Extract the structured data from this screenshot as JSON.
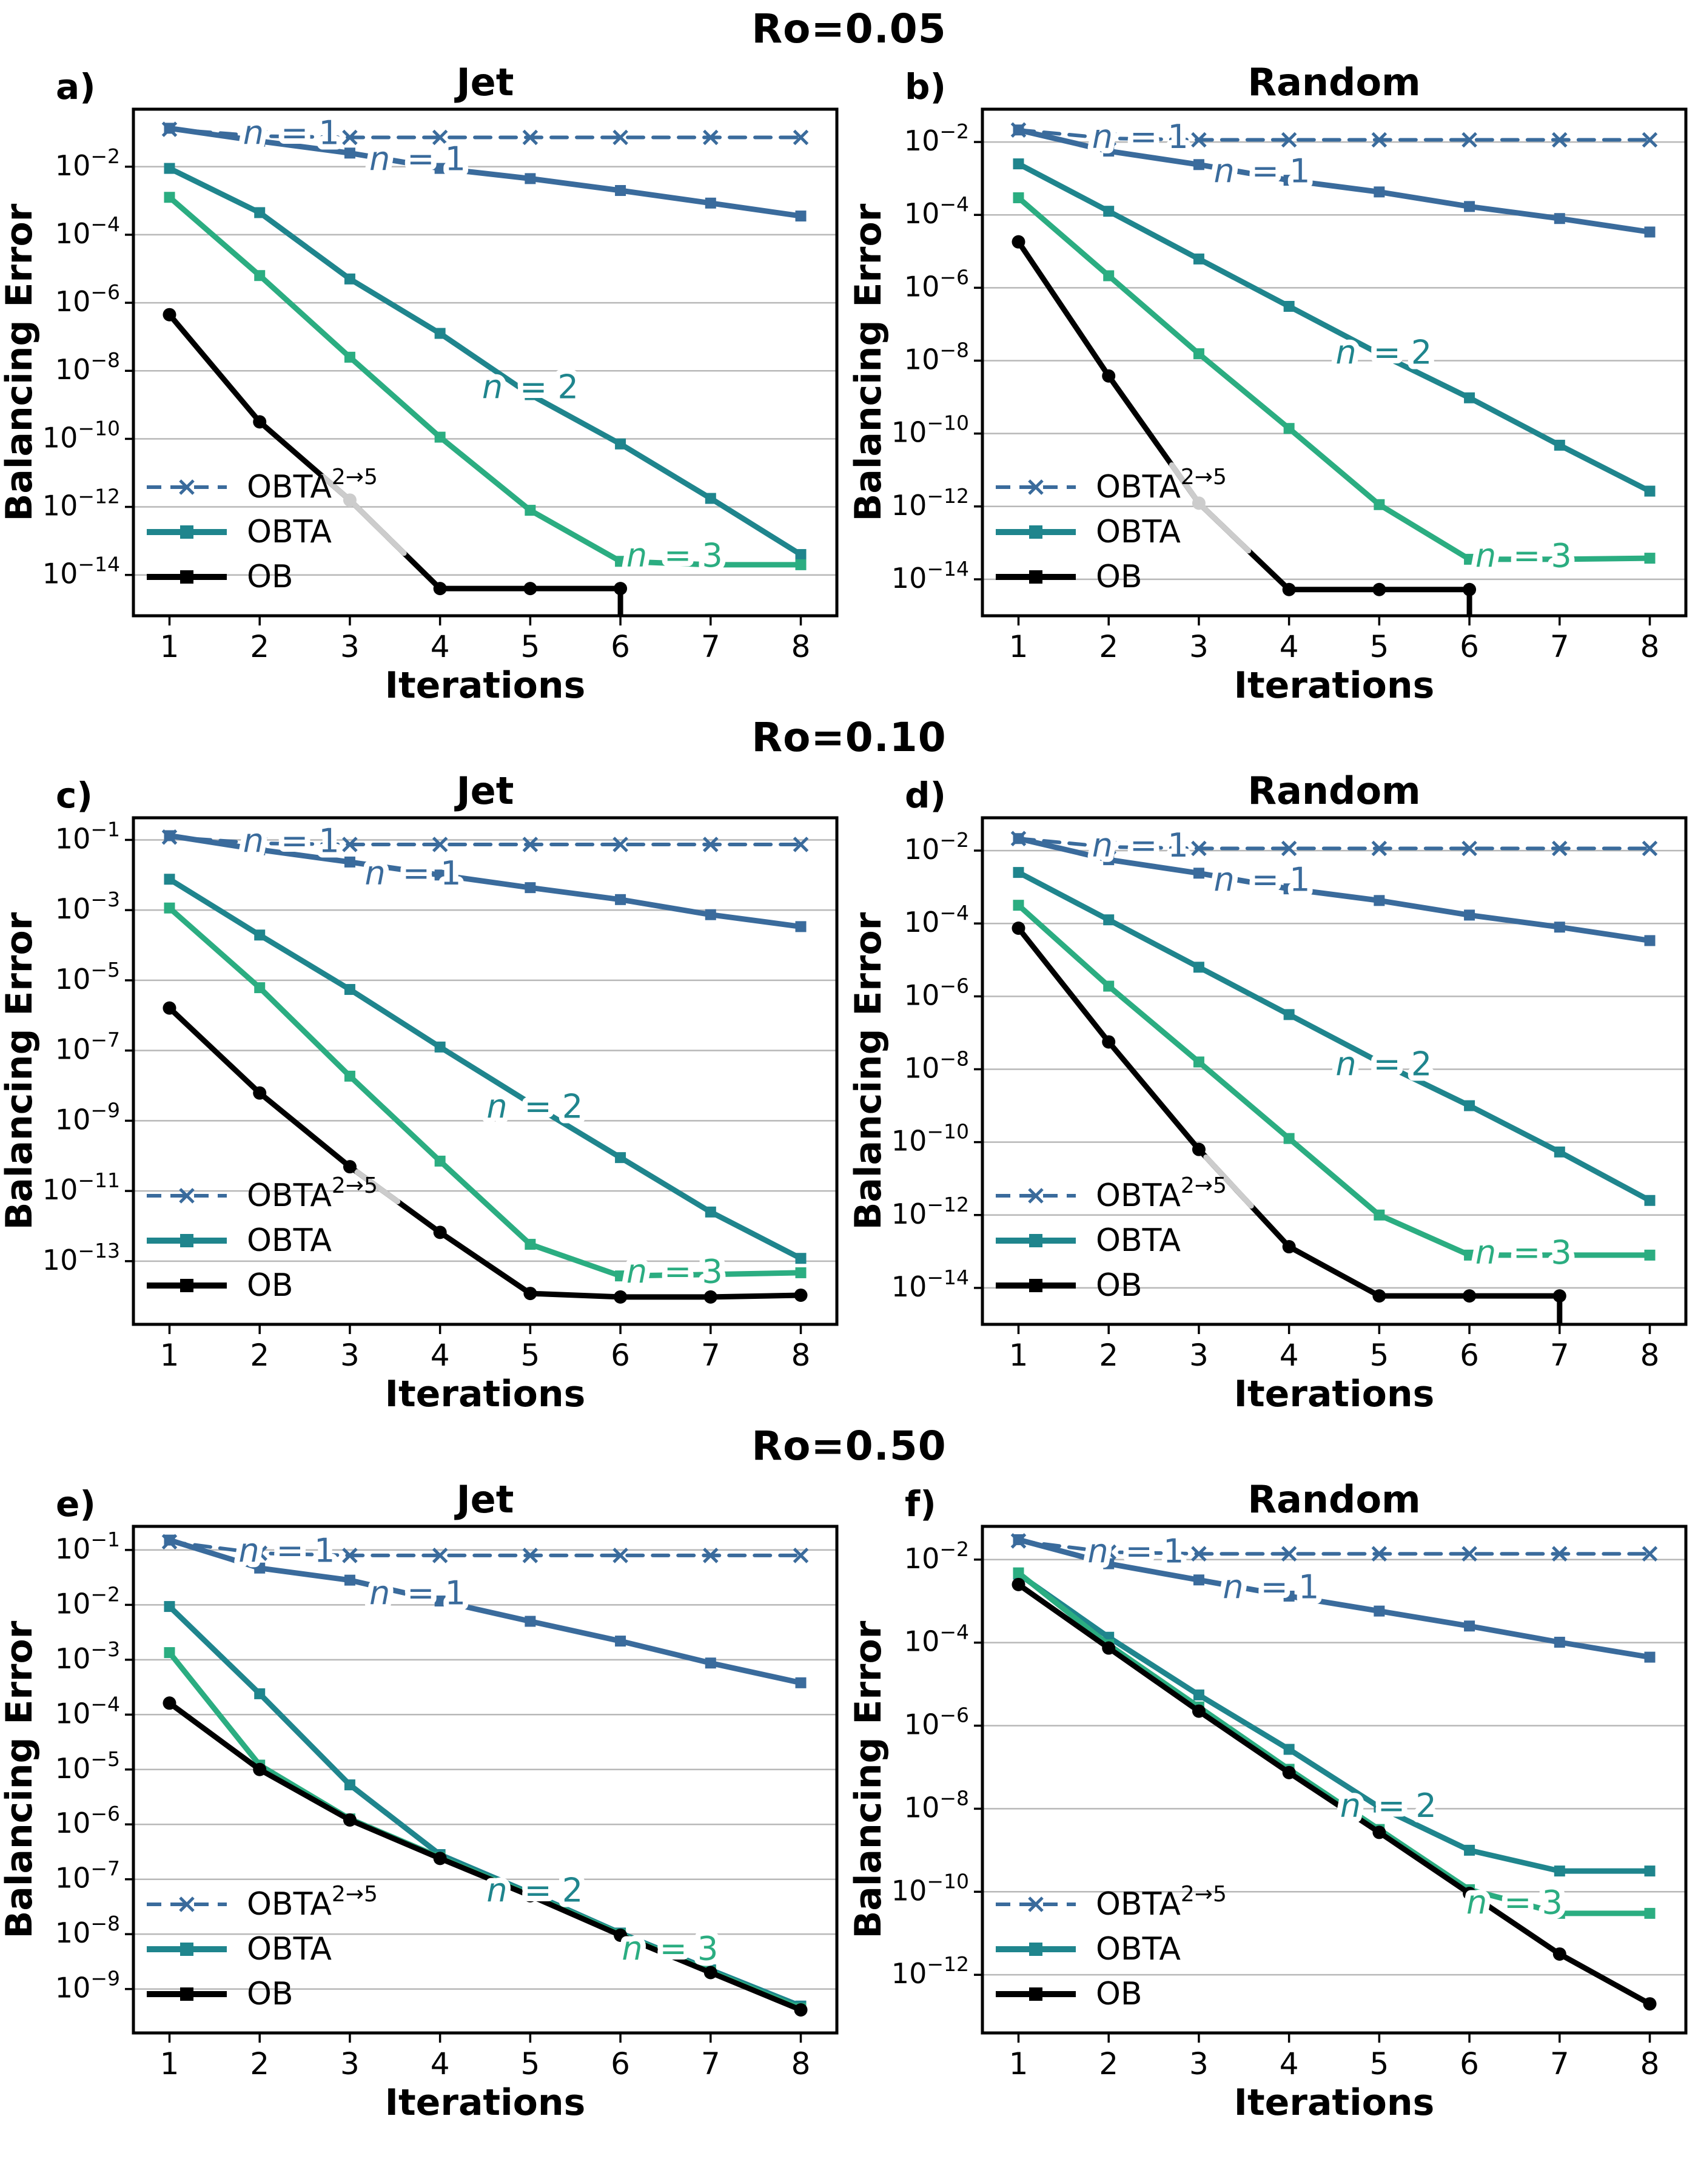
{
  "rows": [
    {
      "title": "Ro=0.05"
    },
    {
      "title": "Ro=0.10"
    },
    {
      "title": "Ro=0.50"
    }
  ],
  "axes": {
    "xlabel": "Iterations",
    "ylabel": "Balancing Error",
    "x_ticks": [
      "1",
      "2",
      "3",
      "4",
      "5",
      "6",
      "7",
      "8"
    ]
  },
  "legend": {
    "entries": [
      {
        "label": "OBTA",
        "sup": "2→5",
        "style": "dashed-x",
        "color": "steelblue"
      },
      {
        "label": "OBTA",
        "sup": "",
        "style": "solid-square",
        "color": "teal"
      },
      {
        "label": "OB",
        "sup": "",
        "style": "solid-square",
        "color": "black"
      }
    ]
  },
  "colors": {
    "steelblue": "#3a6b9c",
    "teal": "#1f858d",
    "green": "#2bad81",
    "black": "#000000",
    "gray": "#cccccc",
    "grid": "#b8b8b8"
  },
  "chart_data": [
    {
      "id": "a",
      "panel_label": "a)",
      "title": "Jet",
      "row_title": "Ro=0.05",
      "type": "line",
      "x": [
        1,
        2,
        3,
        4,
        5,
        6,
        7,
        8
      ],
      "ylim_log": [
        -15.2,
        -0.31
      ],
      "yticks_exp": [
        -2,
        -4,
        -6,
        -8,
        -10,
        -12,
        -14
      ],
      "series": [
        {
          "name": "OBTA 2→5 (n = 1)",
          "color": "steelblue",
          "dashed": true,
          "marker": "x",
          "log10_values": [
            -0.9,
            -1.1,
            -1.14,
            -1.14,
            -1.14,
            -1.14,
            -1.14,
            -1.14
          ]
        },
        {
          "name": "OBTA (n = 1)",
          "color": "steelblue",
          "marker": "square",
          "log10_values": [
            -0.87,
            -1.25,
            -1.6,
            -2.05,
            -2.35,
            -2.7,
            -3.07,
            -3.45
          ]
        },
        {
          "name": "OBTA (n = 2)",
          "color": "teal",
          "marker": "square",
          "log10_values": [
            -2.05,
            -3.35,
            -5.3,
            -6.9,
            -8.7,
            -10.15,
            -11.75,
            -13.4
          ]
        },
        {
          "name": "OBTA (n = 3)",
          "color": "green",
          "marker": "square",
          "log10_values": [
            -2.9,
            -5.2,
            -7.6,
            -9.95,
            -12.1,
            -13.6,
            -13.7,
            -13.7
          ]
        },
        {
          "name": "OB",
          "color": "black",
          "marker": "circle",
          "log10_values": [
            -6.35,
            -9.5,
            -11.8,
            -14.4,
            -14.4,
            -14.4
          ],
          "gray_span": [
            2.7,
            3.62
          ],
          "gray_marker_at": 3,
          "drop_at_x": 6
        }
      ],
      "annotations": [
        {
          "text": "n = 1",
          "x": 2.35,
          "log10_y": -1.03,
          "color": "steelblue"
        },
        {
          "text": "n = 1",
          "x": 3.75,
          "log10_y": -1.8,
          "color": "steelblue"
        },
        {
          "text": "n = 2",
          "x": 5.0,
          "log10_y": -8.5,
          "color": "teal"
        },
        {
          "text": "n = 3",
          "x": 6.6,
          "log10_y": -13.45,
          "color": "green"
        }
      ]
    },
    {
      "id": "b",
      "panel_label": "b)",
      "title": "Random",
      "row_title": "Ro=0.05",
      "type": "line",
      "x": [
        1,
        2,
        3,
        4,
        5,
        6,
        7,
        8
      ],
      "ylim_log": [
        -15.0,
        -1.1
      ],
      "yticks_exp": [
        -2,
        -4,
        -6,
        -8,
        -10,
        -12,
        -14
      ],
      "series": [
        {
          "name": "OBTA 2→5 (n = 1)",
          "color": "steelblue",
          "dashed": true,
          "marker": "x",
          "log10_values": [
            -1.67,
            -1.9,
            -1.94,
            -1.94,
            -1.94,
            -1.94,
            -1.94,
            -1.94
          ]
        },
        {
          "name": "OBTA (n = 1)",
          "color": "steelblue",
          "marker": "square",
          "log10_values": [
            -1.67,
            -2.25,
            -2.62,
            -3.05,
            -3.37,
            -3.77,
            -4.1,
            -4.47
          ]
        },
        {
          "name": "OBTA (n = 2)",
          "color": "teal",
          "marker": "square",
          "log10_values": [
            -2.6,
            -3.9,
            -5.21,
            -6.51,
            -7.81,
            -9.02,
            -10.32,
            -11.58
          ]
        },
        {
          "name": "OBTA (n = 3)",
          "color": "green",
          "marker": "square",
          "log10_values": [
            -3.53,
            -5.67,
            -7.81,
            -9.86,
            -11.95,
            -13.45,
            -13.45,
            -13.42
          ]
        },
        {
          "name": "OB",
          "color": "black",
          "marker": "circle",
          "log10_values": [
            -4.74,
            -8.42,
            -11.91,
            -14.28,
            -14.28,
            -14.28
          ],
          "gray_span": [
            2.7,
            3.58
          ],
          "gray_marker_at": 3,
          "drop_at_x": 6
        }
      ],
      "annotations": [
        {
          "text": "n = 1",
          "x": 2.35,
          "log10_y": -1.88,
          "color": "steelblue"
        },
        {
          "text": "n = 1",
          "x": 3.7,
          "log10_y": -2.82,
          "color": "steelblue"
        },
        {
          "text": "n = 2",
          "x": 5.05,
          "log10_y": -7.8,
          "color": "teal"
        },
        {
          "text": "n = 3",
          "x": 6.6,
          "log10_y": -13.38,
          "color": "green"
        }
      ]
    },
    {
      "id": "c",
      "panel_label": "c)",
      "title": "Jet",
      "row_title": "Ro=0.10",
      "type": "line",
      "x": [
        1,
        2,
        3,
        4,
        5,
        6,
        7,
        8
      ],
      "ylim_log": [
        -14.8,
        -0.37
      ],
      "yticks_exp": [
        -1,
        -3,
        -5,
        -7,
        -9,
        -11,
        -13
      ],
      "series": [
        {
          "name": "OBTA 2→5 (n = 1)",
          "color": "steelblue",
          "dashed": true,
          "marker": "x",
          "log10_values": [
            -0.92,
            -1.1,
            -1.13,
            -1.13,
            -1.13,
            -1.13,
            -1.13,
            -1.13
          ]
        },
        {
          "name": "OBTA (n = 1)",
          "color": "steelblue",
          "marker": "square",
          "log10_values": [
            -0.88,
            -1.28,
            -1.63,
            -2.0,
            -2.36,
            -2.7,
            -3.13,
            -3.47
          ]
        },
        {
          "name": "OBTA (n = 2)",
          "color": "teal",
          "marker": "square",
          "log10_values": [
            -2.12,
            -3.71,
            -5.26,
            -6.9,
            -8.5,
            -10.05,
            -11.6,
            -12.92
          ]
        },
        {
          "name": "OBTA (n = 3)",
          "color": "green",
          "marker": "square",
          "log10_values": [
            -2.94,
            -5.21,
            -7.73,
            -10.15,
            -12.52,
            -13.42,
            -13.38,
            -13.33
          ]
        },
        {
          "name": "OB",
          "color": "black",
          "marker": "circle",
          "log10_values": [
            -5.79,
            -8.21,
            -10.31,
            -12.18,
            -13.92,
            -14.02,
            -14.02,
            -13.97
          ],
          "gray_span": [
            3.08,
            3.55
          ]
        }
      ],
      "annotations": [
        {
          "text": "n = 1",
          "x": 2.35,
          "log10_y": -1.05,
          "color": "steelblue"
        },
        {
          "text": "n = 1",
          "x": 3.7,
          "log10_y": -1.98,
          "color": "steelblue"
        },
        {
          "text": "n = 2",
          "x": 5.05,
          "log10_y": -8.62,
          "color": "teal"
        },
        {
          "text": "n = 3",
          "x": 6.6,
          "log10_y": -13.32,
          "color": "green"
        }
      ]
    },
    {
      "id": "d",
      "panel_label": "d)",
      "title": "Random",
      "row_title": "Ro=0.10",
      "type": "line",
      "x": [
        1,
        2,
        3,
        4,
        5,
        6,
        7,
        8
      ],
      "ylim_log": [
        -15.0,
        -1.1
      ],
      "yticks_exp": [
        -2,
        -4,
        -6,
        -8,
        -10,
        -12,
        -14
      ],
      "series": [
        {
          "name": "OBTA 2→5 (n = 1)",
          "color": "steelblue",
          "dashed": true,
          "marker": "x",
          "log10_values": [
            -1.67,
            -1.9,
            -1.94,
            -1.94,
            -1.94,
            -1.94,
            -1.94,
            -1.94
          ]
        },
        {
          "name": "OBTA (n = 1)",
          "color": "steelblue",
          "marker": "square",
          "log10_values": [
            -1.67,
            -2.25,
            -2.62,
            -3.05,
            -3.37,
            -3.77,
            -4.1,
            -4.47
          ]
        },
        {
          "name": "OBTA (n = 2)",
          "color": "teal",
          "marker": "square",
          "log10_values": [
            -2.6,
            -3.9,
            -5.2,
            -6.5,
            -7.8,
            -9.0,
            -10.27,
            -11.6
          ]
        },
        {
          "name": "OBTA (n = 3)",
          "color": "green",
          "marker": "square",
          "log10_values": [
            -3.5,
            -5.72,
            -7.8,
            -9.9,
            -12.0,
            -13.1,
            -13.1,
            -13.1
          ]
        },
        {
          "name": "OB",
          "color": "black",
          "marker": "circle",
          "log10_values": [
            -4.13,
            -7.25,
            -10.2,
            -12.87,
            -14.22,
            -14.22,
            -14.22
          ],
          "gray_span": [
            3.08,
            3.58
          ],
          "drop_at_x": 7
        }
      ],
      "annotations": [
        {
          "text": "n = 1",
          "x": 2.35,
          "log10_y": -1.88,
          "color": "steelblue"
        },
        {
          "text": "n = 1",
          "x": 3.7,
          "log10_y": -2.82,
          "color": "steelblue"
        },
        {
          "text": "n = 2",
          "x": 5.05,
          "log10_y": -7.88,
          "color": "teal"
        },
        {
          "text": "n = 3",
          "x": 6.6,
          "log10_y": -13.05,
          "color": "green"
        }
      ]
    },
    {
      "id": "e",
      "panel_label": "e)",
      "title": "Jet",
      "row_title": "Ro=0.50",
      "type": "line",
      "x": [
        1,
        2,
        3,
        4,
        5,
        6,
        7,
        8
      ],
      "ylim_log": [
        -9.8,
        -0.57
      ],
      "yticks_exp": [
        -1,
        -2,
        -3,
        -4,
        -5,
        -6,
        -7,
        -8,
        -9
      ],
      "series": [
        {
          "name": "OBTA 2→5 (n = 1)",
          "color": "steelblue",
          "dashed": true,
          "marker": "x",
          "log10_values": [
            -0.85,
            -1.06,
            -1.1,
            -1.1,
            -1.1,
            -1.1,
            -1.1,
            -1.1
          ]
        },
        {
          "name": "OBTA (n = 1)",
          "color": "steelblue",
          "marker": "square",
          "log10_values": [
            -0.82,
            -1.33,
            -1.55,
            -1.93,
            -2.3,
            -2.66,
            -3.06,
            -3.42
          ]
        },
        {
          "name": "OBTA (n = 2)",
          "color": "teal",
          "marker": "square",
          "log10_values": [
            -2.03,
            -3.62,
            -5.28,
            -6.55,
            -7.25,
            -7.98,
            -8.65,
            -9.31
          ]
        },
        {
          "name": "OBTA (n = 3)",
          "color": "green",
          "marker": "square",
          "log10_values": [
            -2.87,
            -4.92,
            -5.9,
            -6.6,
            -7.28,
            -8.0,
            -8.68,
            -9.35
          ]
        },
        {
          "name": "OB",
          "color": "black",
          "marker": "circle",
          "log10_values": [
            -3.79,
            -5.0,
            -5.92,
            -6.62,
            -7.3,
            -8.02,
            -8.7,
            -9.38
          ]
        }
      ],
      "annotations": [
        {
          "text": "n = 1",
          "x": 2.3,
          "log10_y": -1.03,
          "color": "steelblue"
        },
        {
          "text": "n = 1",
          "x": 3.75,
          "log10_y": -1.8,
          "color": "steelblue"
        },
        {
          "text": "n = 2",
          "x": 5.05,
          "log10_y": -7.22,
          "color": "teal"
        },
        {
          "text": "n = 3",
          "x": 6.55,
          "log10_y": -8.28,
          "color": "green"
        }
      ]
    },
    {
      "id": "f",
      "panel_label": "f)",
      "title": "Random",
      "row_title": "Ro=0.50",
      "type": "line",
      "x": [
        1,
        2,
        3,
        4,
        5,
        6,
        7,
        8
      ],
      "ylim_log": [
        -13.4,
        -1.2
      ],
      "yticks_exp": [
        -2,
        -4,
        -6,
        -8,
        -10,
        -12
      ],
      "series": [
        {
          "name": "OBTA 2→5 (n = 1)",
          "color": "steelblue",
          "dashed": true,
          "marker": "x",
          "log10_values": [
            -1.55,
            -1.82,
            -1.86,
            -1.86,
            -1.86,
            -1.86,
            -1.86,
            -1.86
          ]
        },
        {
          "name": "OBTA (n = 1)",
          "color": "steelblue",
          "marker": "square",
          "log10_values": [
            -1.52,
            -2.1,
            -2.49,
            -2.88,
            -3.24,
            -3.6,
            -3.99,
            -4.35
          ]
        },
        {
          "name": "OBTA (n = 2)",
          "color": "teal",
          "marker": "square",
          "log10_values": [
            -2.35,
            -3.87,
            -5.26,
            -6.57,
            -7.96,
            -9.0,
            -9.5,
            -9.5
          ]
        },
        {
          "name": "OBTA (n = 3)",
          "color": "green",
          "marker": "square",
          "log10_values": [
            -2.32,
            -4.05,
            -5.55,
            -7.05,
            -8.5,
            -9.95,
            -10.52,
            -10.52
          ]
        },
        {
          "name": "OB",
          "color": "black",
          "marker": "circle",
          "log10_values": [
            -2.6,
            -4.13,
            -5.65,
            -7.13,
            -8.57,
            -10.04,
            -11.5,
            -12.7
          ]
        }
      ],
      "annotations": [
        {
          "text": "n = 1",
          "x": 2.3,
          "log10_y": -1.82,
          "color": "steelblue"
        },
        {
          "text": "n = 1",
          "x": 3.8,
          "log10_y": -2.68,
          "color": "steelblue"
        },
        {
          "text": "n = 2",
          "x": 5.1,
          "log10_y": -7.95,
          "color": "teal"
        },
        {
          "text": "n = 3",
          "x": 6.5,
          "log10_y": -10.28,
          "color": "green"
        }
      ]
    }
  ]
}
